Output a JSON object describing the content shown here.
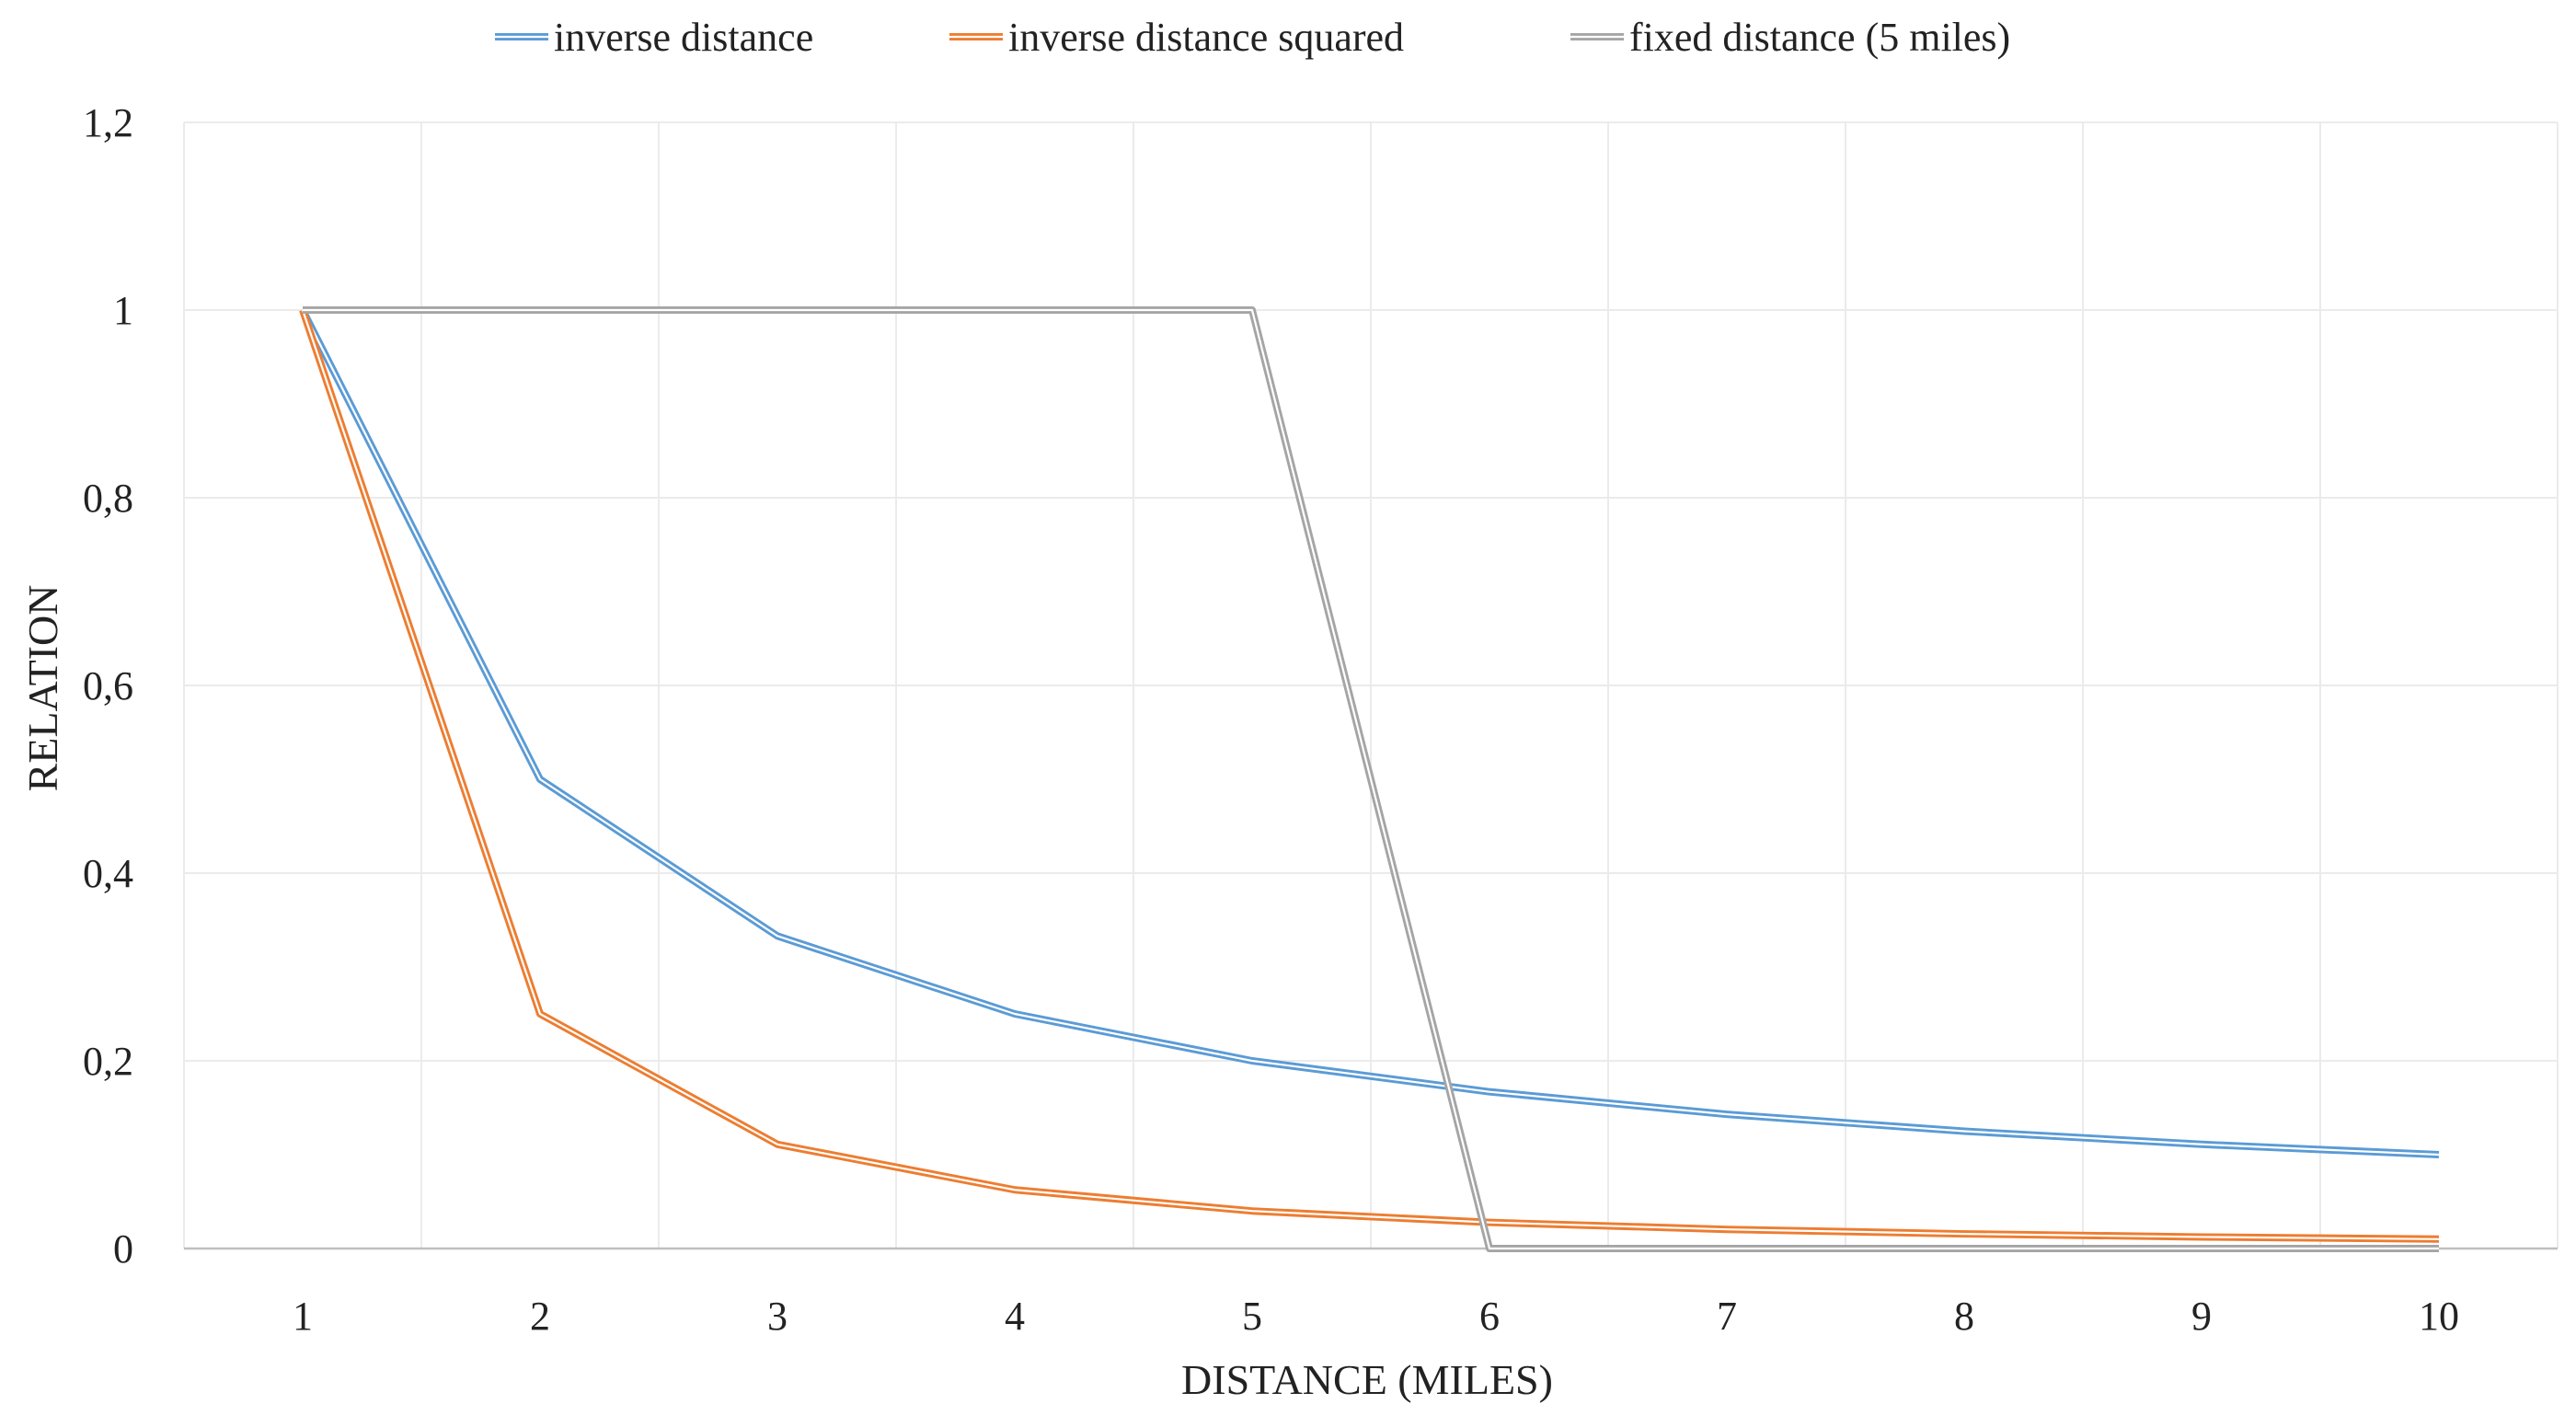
{
  "chart_data": {
    "type": "line",
    "title": "",
    "xlabel": "DISTANCE (MILES)",
    "ylabel": "RELATION",
    "x": [
      1,
      2,
      3,
      4,
      5,
      6,
      7,
      8,
      9,
      10
    ],
    "x_tick_labels": [
      "1",
      "2",
      "3",
      "4",
      "5",
      "6",
      "7",
      "8",
      "9",
      "10"
    ],
    "ylim": [
      0,
      1.2
    ],
    "y_ticks": [
      0,
      0.2,
      0.4,
      0.6,
      0.8,
      1,
      1.2
    ],
    "y_tick_labels": [
      "0",
      "0,2",
      "0,4",
      "0,6",
      "0,8",
      "1",
      "1,2"
    ],
    "grid": true,
    "legend_position": "top",
    "series": [
      {
        "name": "inverse distance",
        "color": "#5b9bd5",
        "values": [
          1,
          0.5,
          0.333,
          0.25,
          0.2,
          0.167,
          0.143,
          0.125,
          0.111,
          0.1
        ]
      },
      {
        "name": "inverse distance squared",
        "color": "#ed7d31",
        "values": [
          1,
          0.25,
          0.111,
          0.0625,
          0.04,
          0.0278,
          0.0204,
          0.0156,
          0.0123,
          0.01
        ]
      },
      {
        "name": "fixed distance (5 miles)",
        "color": "#a5a5a5",
        "values": [
          1,
          1,
          1,
          1,
          1,
          0,
          0,
          0,
          0,
          0
        ]
      }
    ]
  }
}
